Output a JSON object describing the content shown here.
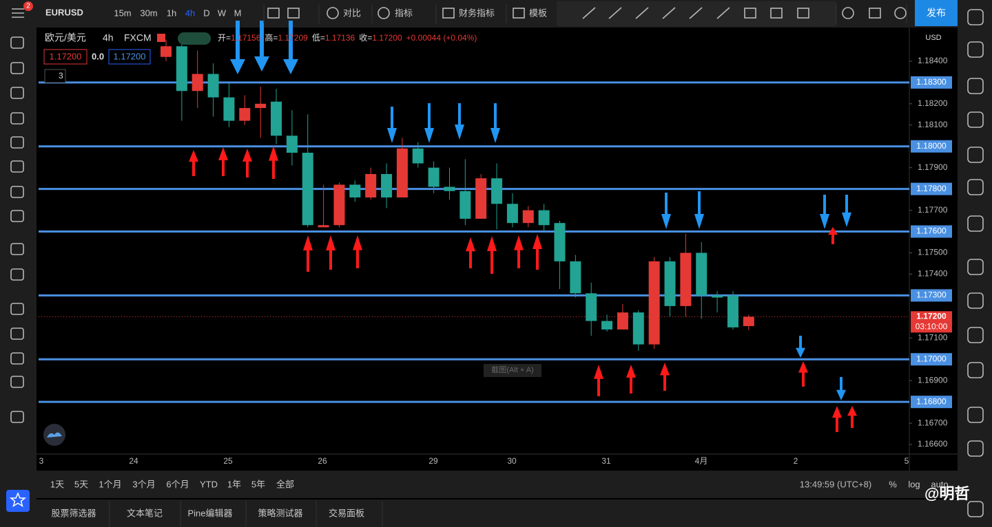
{
  "toolbar": {
    "notification_count": "2",
    "symbol": "EURUSD",
    "intervals": [
      "15m",
      "30m",
      "1h",
      "4h",
      "D",
      "W",
      "M"
    ],
    "active_interval": 3,
    "compare": "对比",
    "indicators": "指标",
    "financials": "财务指标",
    "templates": "模板",
    "publish": "发布"
  },
  "legend": {
    "name": "欧元/美元",
    "interval": "4h",
    "source": "FXCM",
    "ohlc": [
      {
        "label": "开=",
        "value": "1.17156"
      },
      {
        "label": "高=",
        "value": "1.17209"
      },
      {
        "label": "低=",
        "value": "1.17136"
      },
      {
        "label": "收=",
        "value": "1.17200"
      }
    ],
    "change": "+0.00044 (+0.04%)",
    "sell": "1.17200",
    "spread": "0.0",
    "buy": "1.17200",
    "collapsed_count": "3"
  },
  "chart_data": {
    "type": "candlestick",
    "currency": "USD",
    "up_color": "#e53935",
    "down_color": "#22a394",
    "level_color": "#4a90e2",
    "grid": false,
    "open": [
      1.1842,
      1.1847,
      1.1826,
      1.1834,
      1.1823,
      1.1812,
      1.1818,
      1.1821,
      1.1805,
      1.1797,
      1.1762,
      1.1763,
      1.1782,
      1.1776,
      1.1787,
      1.1776,
      1.1799,
      1.179,
      1.1781,
      1.1779,
      1.1766,
      1.1785,
      1.1773,
      1.1764,
      1.177,
      1.1764,
      1.1746,
      1.1731,
      1.1718,
      1.1714,
      1.1722,
      1.1707,
      1.1746,
      1.1725,
      1.175,
      1.173,
      1.173,
      1.17156
    ],
    "high": [
      1.185,
      1.1849,
      1.1845,
      1.1839,
      1.183,
      1.1824,
      1.1828,
      1.1827,
      1.1817,
      1.1815,
      1.1782,
      1.1783,
      1.1784,
      1.179,
      1.1792,
      1.1804,
      1.1802,
      1.1793,
      1.179,
      1.1794,
      1.1787,
      1.1792,
      1.1778,
      1.1772,
      1.1773,
      1.1765,
      1.1749,
      1.1736,
      1.1721,
      1.1726,
      1.1723,
      1.1748,
      1.1748,
      1.1759,
      1.1755,
      1.1732,
      1.1732,
      1.17209
    ],
    "low": [
      1.184,
      1.1812,
      1.1818,
      1.1814,
      1.1809,
      1.181,
      1.1804,
      1.1801,
      1.1791,
      1.1762,
      1.1762,
      1.1762,
      1.1774,
      1.1775,
      1.1771,
      1.1776,
      1.179,
      1.1778,
      1.1775,
      1.1763,
      1.1766,
      1.1761,
      1.1762,
      1.1762,
      1.176,
      1.1733,
      1.1729,
      1.1711,
      1.1713,
      1.1714,
      1.1704,
      1.1705,
      1.172,
      1.172,
      1.1719,
      1.1722,
      1.1714,
      1.17136
    ],
    "close": [
      1.1847,
      1.1826,
      1.1834,
      1.1823,
      1.1812,
      1.1818,
      1.182,
      1.1805,
      1.1797,
      1.1763,
      1.1763,
      1.1782,
      1.1776,
      1.1787,
      1.1776,
      1.1799,
      1.1792,
      1.1781,
      1.1779,
      1.1766,
      1.1785,
      1.1773,
      1.1764,
      1.177,
      1.1763,
      1.1746,
      1.1731,
      1.1718,
      1.1714,
      1.1722,
      1.1707,
      1.1746,
      1.1725,
      1.175,
      1.173,
      1.1729,
      1.1715,
      1.172
    ],
    "ylim": [
      1.16555,
      1.18558
    ],
    "yticks": [
      {
        "value": 1.184,
        "label": "1.18400"
      },
      {
        "value": 1.182,
        "label": "1.18200"
      },
      {
        "value": 1.181,
        "label": "1.18100"
      },
      {
        "value": 1.179,
        "label": "1.17900"
      },
      {
        "value": 1.177,
        "label": "1.17700"
      },
      {
        "value": 1.175,
        "label": "1.17500"
      },
      {
        "value": 1.174,
        "label": "1.17400"
      },
      {
        "value": 1.171,
        "label": "1.17100"
      },
      {
        "value": 1.169,
        "label": "1.16900"
      },
      {
        "value": 1.167,
        "label": "1.16700"
      },
      {
        "value": 1.166,
        "label": "1.16600"
      }
    ],
    "levels": [
      {
        "value": 1.183,
        "label": "1.18300"
      },
      {
        "value": 1.18,
        "label": "1.18000"
      },
      {
        "value": 1.178,
        "label": "1.17800"
      },
      {
        "value": 1.176,
        "label": "1.17600"
      },
      {
        "value": 1.173,
        "label": "1.17300"
      },
      {
        "value": 1.17,
        "label": "1.17000"
      },
      {
        "value": 1.168,
        "label": "1.16800"
      }
    ],
    "last_price": {
      "value": 1.172,
      "label": "1.17200"
    },
    "countdown": "03:10:00",
    "xtick_labels": [
      "3",
      "24",
      "25",
      "26",
      "29",
      "30",
      "31",
      "4月",
      "2",
      "5"
    ]
  },
  "tooltip": "截图(Alt + A)",
  "bottom_bar": {
    "ranges": [
      "1天",
      "5天",
      "1个月",
      "3个月",
      "6个月",
      "YTD",
      "1年",
      "5年",
      "全部"
    ],
    "clock": "13:49:59 (UTC+8)",
    "percent": "%",
    "log": "log",
    "auto": "auto"
  },
  "tabs": [
    "股票筛选器",
    "文本笔记",
    "Pine编辑器",
    "策略测试器",
    "交易面板"
  ],
  "watermark": "@明哲"
}
